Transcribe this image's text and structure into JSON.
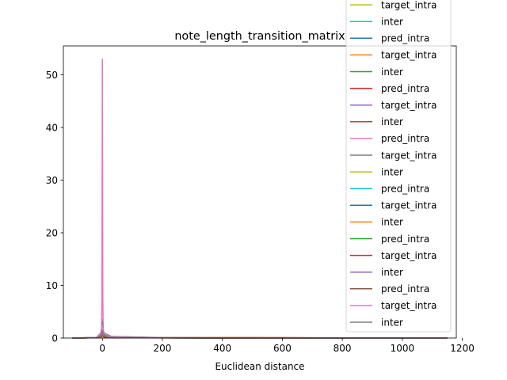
{
  "chart_data": {
    "type": "line",
    "title": "note_length_transition_matrix",
    "xlabel": "Euclidean distance",
    "ylabel": "",
    "xlim": [
      -130,
      1180
    ],
    "ylim": [
      0,
      55.5
    ],
    "xticks": [
      0,
      200,
      400,
      600,
      800,
      1000,
      1200
    ],
    "yticks": [
      0,
      10,
      20,
      30,
      40,
      50
    ],
    "grid": false,
    "legend_position": "top-right",
    "series": [
      {
        "name": "target_intra",
        "color": "#bcbd22",
        "x": [
          -100,
          -20,
          -6,
          0,
          6,
          25,
          200,
          600,
          1000,
          1150
        ],
        "y": [
          0,
          0.1,
          0.5,
          1.2,
          0.5,
          0.1,
          0.05,
          0.03,
          0.02,
          0
        ]
      },
      {
        "name": "inter",
        "color": "#17becf",
        "x": [
          -100,
          -20,
          -6,
          0,
          6,
          25,
          200,
          600,
          1000,
          1150
        ],
        "y": [
          0,
          0.05,
          0.3,
          0.8,
          0.3,
          0.1,
          0.05,
          0.02,
          0.01,
          0
        ]
      },
      {
        "name": "pred_intra",
        "color": "#1f77b4",
        "x": [
          -100,
          -20,
          -6,
          0,
          6,
          25,
          200,
          600,
          1000,
          1150
        ],
        "y": [
          0,
          0.1,
          0.4,
          1.0,
          0.4,
          0.1,
          0.05,
          0.03,
          0.01,
          0
        ]
      },
      {
        "name": "target_intra",
        "color": "#ff7f0e",
        "x": [
          -100,
          -20,
          -6,
          0,
          6,
          25,
          200,
          600,
          1000,
          1150
        ],
        "y": [
          0,
          0.1,
          0.3,
          0.6,
          0.3,
          0.1,
          0.08,
          0.05,
          0.03,
          0
        ]
      },
      {
        "name": "inter",
        "color": "#2ca02c",
        "x": [
          -100,
          -20,
          -6,
          0,
          6,
          25,
          200,
          600,
          1000,
          1150
        ],
        "y": [
          0,
          0.05,
          0.2,
          0.5,
          0.2,
          0.1,
          0.05,
          0.02,
          0.01,
          0
        ]
      },
      {
        "name": "pred_intra",
        "color": "#d62728",
        "x": [
          -100,
          -20,
          -6,
          0,
          6,
          25,
          200,
          450,
          800,
          1150
        ],
        "y": [
          0,
          0.05,
          0.2,
          0.4,
          0.2,
          0.08,
          0.05,
          0.1,
          0.02,
          0
        ]
      },
      {
        "name": "target_intra",
        "color": "#9467bd",
        "x": [
          -100,
          -20,
          -4,
          0,
          4,
          25,
          200,
          600,
          1000,
          1150
        ],
        "y": [
          0,
          0.1,
          0.8,
          3.5,
          0.8,
          0.3,
          0.05,
          0.02,
          0.01,
          0
        ]
      },
      {
        "name": "inter",
        "color": "#8c564b",
        "x": [
          -100,
          -20,
          -6,
          0,
          6,
          25,
          200,
          600,
          1000,
          1150
        ],
        "y": [
          0,
          0.05,
          0.2,
          0.5,
          0.2,
          0.05,
          0.03,
          0.02,
          0.01,
          0
        ]
      },
      {
        "name": "pred_intra",
        "color": "#e377c2",
        "x": [
          -100,
          -10,
          -3,
          -1.5,
          0,
          1.5,
          3,
          10,
          200,
          1150
        ],
        "y": [
          0,
          0.05,
          0.5,
          8,
          53,
          8,
          0.5,
          0.05,
          0.01,
          0
        ]
      },
      {
        "name": "target_intra",
        "color": "#7f7f7f",
        "x": [
          -100,
          -20,
          -5,
          0,
          5,
          30,
          200,
          600,
          1000,
          1150
        ],
        "y": [
          0,
          0.1,
          1.0,
          3.0,
          1.0,
          0.3,
          0.1,
          0.05,
          0.02,
          0
        ]
      },
      {
        "name": "inter",
        "color": "#bcbd22",
        "x": [
          -100,
          -20,
          -6,
          0,
          6,
          25,
          200,
          600,
          1000,
          1150
        ],
        "y": [
          0,
          0.05,
          0.2,
          0.4,
          0.2,
          0.05,
          0.03,
          0.02,
          0.01,
          0
        ]
      },
      {
        "name": "pred_intra",
        "color": "#17becf",
        "x": [
          -100,
          -20,
          -6,
          0,
          6,
          25,
          200,
          600,
          1000,
          1150
        ],
        "y": [
          0,
          0.05,
          0.2,
          0.5,
          0.2,
          0.05,
          0.03,
          0.02,
          0.01,
          0
        ]
      },
      {
        "name": "target_intra",
        "color": "#1f77b4",
        "x": [
          -100,
          -20,
          -6,
          0,
          6,
          25,
          200,
          600,
          1000,
          1150
        ],
        "y": [
          0,
          0.05,
          0.2,
          0.4,
          0.2,
          0.05,
          0.03,
          0.02,
          0.01,
          0
        ]
      },
      {
        "name": "inter",
        "color": "#ff7f0e",
        "x": [
          -100,
          -20,
          -6,
          0,
          6,
          25,
          200,
          600,
          1000,
          1150
        ],
        "y": [
          0,
          0.05,
          0.15,
          0.3,
          0.15,
          0.1,
          0.08,
          0.06,
          0.04,
          0
        ]
      },
      {
        "name": "pred_intra",
        "color": "#2ca02c",
        "x": [
          -100,
          -20,
          -6,
          0,
          6,
          25,
          200,
          600,
          1000,
          1150
        ],
        "y": [
          0,
          0.05,
          0.2,
          0.4,
          0.2,
          0.05,
          0.03,
          0.02,
          0.01,
          0
        ]
      },
      {
        "name": "target_intra",
        "color": "#d62728",
        "x": [
          -100,
          -20,
          -6,
          0,
          6,
          25,
          200,
          600,
          1000,
          1150
        ],
        "y": [
          0,
          0.05,
          0.2,
          0.4,
          0.2,
          0.05,
          0.03,
          0.02,
          0.01,
          0
        ]
      },
      {
        "name": "inter",
        "color": "#9467bd",
        "x": [
          -100,
          -20,
          -6,
          0,
          6,
          25,
          200,
          600,
          1000,
          1150
        ],
        "y": [
          0,
          0.1,
          0.5,
          1.5,
          0.5,
          0.2,
          0.05,
          0.02,
          0.01,
          0
        ]
      },
      {
        "name": "pred_intra",
        "color": "#8c564b",
        "x": [
          -100,
          -20,
          -6,
          0,
          6,
          25,
          200,
          600,
          1000,
          1150
        ],
        "y": [
          0,
          0.05,
          0.2,
          0.5,
          0.2,
          0.05,
          0.03,
          0.02,
          0.01,
          0
        ]
      },
      {
        "name": "target_intra",
        "color": "#e377c2",
        "x": [
          -100,
          -20,
          -5,
          0,
          5,
          25,
          200,
          600,
          1000,
          1150
        ],
        "y": [
          0,
          0.1,
          1.0,
          2.5,
          1.0,
          0.2,
          0.05,
          0.02,
          0.01,
          0
        ]
      },
      {
        "name": "inter",
        "color": "#7f7f7f",
        "x": [
          -100,
          -20,
          -5,
          0,
          5,
          25,
          200,
          600,
          1000,
          1150
        ],
        "y": [
          0,
          0.05,
          0.5,
          1.5,
          0.5,
          0.1,
          0.05,
          0.02,
          0.01,
          0
        ]
      }
    ]
  }
}
